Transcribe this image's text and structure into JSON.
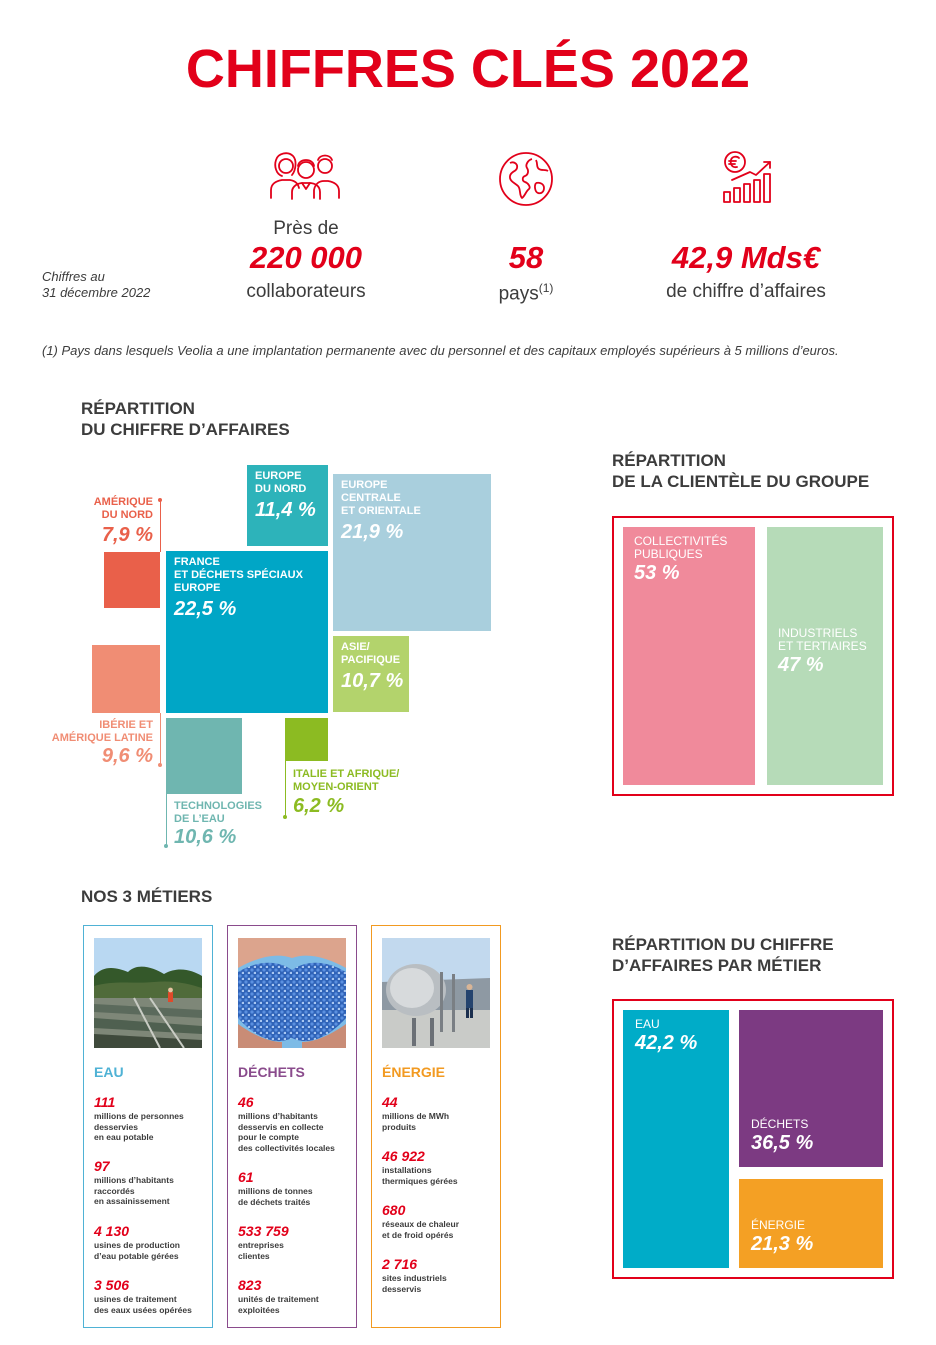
{
  "title": "CHIFFRES CLÉS 2022",
  "as_of": [
    "Chiffres au",
    "31 décembre 2022"
  ],
  "kpis": {
    "employees": {
      "pre": "Près de",
      "value": "220 000",
      "label": "collaborateurs",
      "icon": "people-icon"
    },
    "countries": {
      "value": "58",
      "label": "pays",
      "footnote_mark": "(1)",
      "icon": "globe-icon"
    },
    "revenue": {
      "value": "42,9 Mds€",
      "label": "de chiffre d’affaires",
      "icon": "euro-growth-chart-icon"
    }
  },
  "footnote": "(1) Pays dans lesquels Veolia a une implantation permanente avec du personnel et des capitaux employés supérieurs à 5 millions d’euros.",
  "revenue_split": {
    "title": [
      "RÉPARTITION",
      "DU CHIFFRE D’AFFAIRES"
    ],
    "segments": {
      "europe_nord": {
        "label": [
          "EUROPE",
          "DU NORD"
        ],
        "value": "11,4  %",
        "pct": 11.4,
        "color": "#2db3ba"
      },
      "europe_centrale": {
        "label": [
          "EUROPE",
          "CENTRALE",
          "ET ORIENTALE"
        ],
        "value": "21,9 %",
        "pct": 21.9,
        "color": "#a9cfdd"
      },
      "amerique_nord": {
        "label": [
          "AMÉRIQUE",
          "DU NORD"
        ],
        "value": "7,9 %",
        "pct": 7.9,
        "color": "#e9604a"
      },
      "france": {
        "label": [
          "FRANCE",
          "ET DÉCHETS SPÉCIAUX",
          "EUROPE"
        ],
        "value": "22,5 %",
        "pct": 22.5,
        "color": "#00a6c6"
      },
      "asie": {
        "label": [
          "ASIE/",
          "PACIFIQUE"
        ],
        "value": "10,7 %",
        "pct": 10.7,
        "color": "#b3d36c"
      },
      "iberie": {
        "label": [
          "IBÉRIE ET",
          "AMÉRIQUE LATINE"
        ],
        "value": "9,6 %",
        "pct": 9.6,
        "color": "#f08d74"
      },
      "technologies": {
        "label": [
          "TECHNOLOGIES",
          "DE L’EAU"
        ],
        "value": "10,6 %",
        "pct": 10.6,
        "color": "#6fb6b0"
      },
      "italie": {
        "label": [
          "ITALIE ET AFRIQUE/",
          "MOYEN-ORIENT"
        ],
        "value": "6,2 %",
        "pct": 6.2,
        "color": "#8cbb22"
      }
    }
  },
  "clientele": {
    "title": [
      "RÉPARTITION",
      "DE LA CLIENTÈLE DU GROUPE"
    ],
    "collectivites": {
      "label": [
        "COLLECTIVITÉS",
        "PUBLIQUES"
      ],
      "value": "53 %",
      "pct": 53,
      "color": "#f08a9b"
    },
    "industriels": {
      "label": [
        "INDUSTRIELS",
        "ET TERTIAIRES"
      ],
      "value": "47 %",
      "pct": 47,
      "color": "#b6dbb8"
    }
  },
  "metiers": {
    "title": "NOS 3 MÉTIERS",
    "eau": {
      "name": "EAU",
      "color": "#4fb2d5",
      "stats": [
        {
          "num": "111",
          "desc": [
            "millions de personnes",
            "desservies",
            "en eau potable"
          ]
        },
        {
          "num": "97",
          "desc": [
            "millions d’habitants",
            "raccordés",
            "en assainissement"
          ]
        },
        {
          "num": "4 130",
          "desc": [
            "usines de production",
            "d’eau potable gérées"
          ]
        },
        {
          "num": "3 506",
          "desc": [
            "usines de traitement",
            "des eaux usées opérées"
          ]
        }
      ]
    },
    "dechets": {
      "name": "DÉCHETS",
      "color": "#8a4b8c",
      "stats": [
        {
          "num": "46",
          "desc": [
            "millions d’habitants",
            "desservis en collecte",
            "pour le compte",
            "des collectivités locales"
          ]
        },
        {
          "num": "61",
          "desc": [
            "millions de tonnes",
            "de déchets traités"
          ]
        },
        {
          "num": "533  759",
          "desc": [
            "entreprises",
            "clientes"
          ]
        },
        {
          "num": "823",
          "desc": [
            "unités de traitement",
            "exploitées"
          ]
        }
      ]
    },
    "energie": {
      "name": "ÉNERGIE",
      "color": "#f29a21",
      "stats": [
        {
          "num": "44",
          "desc": [
            "millions de MWh",
            "produits"
          ]
        },
        {
          "num": "46 922",
          "desc": [
            "installations",
            "thermiques gérées"
          ]
        },
        {
          "num": "680",
          "desc": [
            "réseaux de chaleur",
            "et de froid opérés"
          ]
        },
        {
          "num": "2 716",
          "desc": [
            "sites industriels",
            "desservis"
          ]
        }
      ]
    }
  },
  "revenue_by_business": {
    "title": [
      "RÉPARTITION DU CHIFFRE",
      "D’AFFAIRES PAR MÉTIER"
    ],
    "eau": {
      "label": "EAU",
      "value": "42,2 %",
      "pct": 42.2,
      "color": "#00acc8"
    },
    "dechets": {
      "label": "DÉCHETS",
      "value": "36,5 %",
      "pct": 36.5,
      "color": "#7c3a82"
    },
    "energie": {
      "label": "ÉNERGIE",
      "value": "21,3  %",
      "pct": 21.3,
      "color": "#f4a024"
    }
  }
}
